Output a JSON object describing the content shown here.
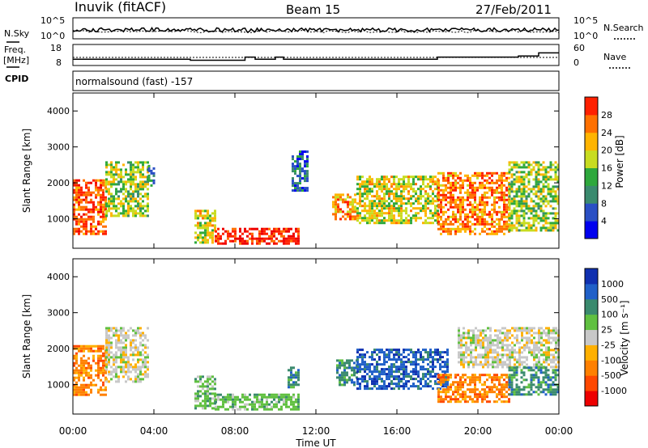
{
  "header": {
    "station": "Inuvik (fitACF)",
    "beam": "Beam 15",
    "date": "27/Feb/2011"
  },
  "noise_panel": {
    "left_label": "N.Sky",
    "right_label": "N.Search",
    "left_ticks": [
      "10^5",
      "10^0"
    ],
    "right_ticks": [
      "10^5",
      "10^0"
    ]
  },
  "freq_panel": {
    "left_label_1": "Freq.",
    "left_label_2": "[MHz]",
    "right_label": "Nave",
    "left_ticks": [
      "18",
      "8"
    ],
    "right_ticks": [
      "60",
      "0"
    ]
  },
  "cpid": {
    "label": "CPID",
    "program": "normalsound (fast) -157"
  },
  "colors": {
    "power_scale": [
      "#0000ee",
      "#2a4fc4",
      "#3a8a6e",
      "#2ea83c",
      "#c8dc20",
      "#ffb400",
      "#ff7000",
      "#ff2000",
      "#ee0000"
    ],
    "velocity_scale": [
      "#ee0000",
      "#ff4800",
      "#ff8000",
      "#ffb000",
      "#c8c8c8",
      "#60c040",
      "#3a8a6e",
      "#2060c8",
      "#1030b0"
    ]
  },
  "chart_data": [
    {
      "type": "heatmap",
      "name": "power",
      "ylabel": "Slant Range [km]",
      "xlabel": "",
      "ylim": [
        180,
        4500
      ],
      "yticks": [
        "1000",
        "2000",
        "3000",
        "4000"
      ],
      "colorbar_label": "Power [dB]",
      "colorbar_ticks": [
        "4",
        "8",
        "12",
        "16",
        "20",
        "24",
        "28"
      ],
      "colorbar_range": [
        0,
        30
      ],
      "echo_regions": [
        {
          "t": [
            0.0,
            1.6
          ],
          "r": [
            600,
            2100
          ],
          "v": 24
        },
        {
          "t": [
            1.6,
            3.7
          ],
          "r": [
            1100,
            2600
          ],
          "v": 14
        },
        {
          "t": [
            3.7,
            4.0
          ],
          "r": [
            1900,
            2500
          ],
          "v": 8
        },
        {
          "t": [
            6.0,
            7.0
          ],
          "r": [
            350,
            1250
          ],
          "v": 16
        },
        {
          "t": [
            7.0,
            11.2
          ],
          "r": [
            300,
            750
          ],
          "v": 27
        },
        {
          "t": [
            10.8,
            11.6
          ],
          "r": [
            1800,
            2900
          ],
          "v": 6
        },
        {
          "t": [
            12.8,
            14.0
          ],
          "r": [
            1000,
            1700
          ],
          "v": 20
        },
        {
          "t": [
            14.0,
            18.0
          ],
          "r": [
            850,
            2200
          ],
          "v": 16
        },
        {
          "t": [
            18.0,
            21.5
          ],
          "r": [
            550,
            2300
          ],
          "v": 22
        },
        {
          "t": [
            21.5,
            24.0
          ],
          "r": [
            700,
            2600
          ],
          "v": 14
        }
      ]
    },
    {
      "type": "heatmap",
      "name": "velocity",
      "ylabel": "Slant Range [km]",
      "xlabel": "Time UT",
      "ylim": [
        180,
        4500
      ],
      "yticks": [
        "1000",
        "2000",
        "3000",
        "4000"
      ],
      "xticks": [
        "00:00",
        "04:00",
        "08:00",
        "12:00",
        "16:00",
        "20:00",
        "00:00"
      ],
      "xlim": [
        0,
        24
      ],
      "colorbar_label": "Velocity [m s⁻¹]",
      "colorbar_ticks": [
        "-1000",
        "-500",
        "-100",
        "-25",
        "25",
        "100",
        "500",
        "1000"
      ],
      "echo_regions": [
        {
          "t": [
            0.0,
            1.6
          ],
          "r": [
            700,
            2100
          ],
          "v": -300
        },
        {
          "t": [
            1.6,
            3.7
          ],
          "r": [
            1100,
            2600
          ],
          "v": 0
        },
        {
          "t": [
            6.0,
            7.0
          ],
          "r": [
            350,
            1250
          ],
          "v": 80
        },
        {
          "t": [
            7.0,
            11.2
          ],
          "r": [
            300,
            750
          ],
          "v": 50
        },
        {
          "t": [
            10.6,
            11.2
          ],
          "r": [
            950,
            1500
          ],
          "v": 300
        },
        {
          "t": [
            13.0,
            14.0
          ],
          "r": [
            1000,
            1700
          ],
          "v": 300
        },
        {
          "t": [
            14.0,
            18.5
          ],
          "r": [
            900,
            2000
          ],
          "v": 900
        },
        {
          "t": [
            18.0,
            21.5
          ],
          "r": [
            550,
            1300
          ],
          "v": -400
        },
        {
          "t": [
            19.0,
            24.0
          ],
          "r": [
            1500,
            2600
          ],
          "v": 0
        },
        {
          "t": [
            21.5,
            24.0
          ],
          "r": [
            700,
            1500
          ],
          "v": 100
        }
      ]
    }
  ]
}
